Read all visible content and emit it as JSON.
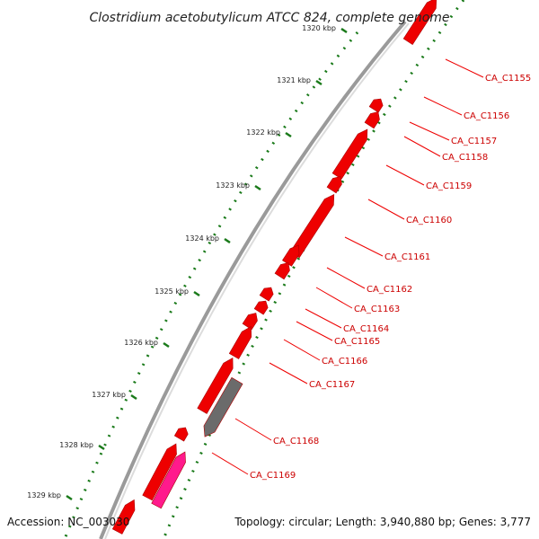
{
  "title": "Clostridium acetobutylicum ATCC 824, complete genome",
  "accession_text": "Accession: NC_003030",
  "stats_text": "Topology: circular; Length: 3,940,880 bp; Genes: 3,777",
  "colors": {
    "gene": "#ee0000",
    "gene_rna": "#6b6b6b",
    "gene_pink": "#ff1a8c",
    "backbone": "#9a9a9a",
    "ruler_dots": "#1a7a1a",
    "label_line": "#ee0000",
    "label_text": "#cc0000"
  },
  "kbp_ticks": [
    "1320 kbp",
    "1321 kbp",
    "1322 kbp",
    "1323 kbp",
    "1324 kbp",
    "1325 kbp",
    "1326 kbp",
    "1327 kbp",
    "1328 kbp",
    "1329 kbp"
  ],
  "gene_labels": [
    "CA_C1155",
    "CA_C1156",
    "CA_C1157",
    "CA_C1158",
    "CA_C1159",
    "CA_C1160",
    "CA_C1161",
    "CA_C1162",
    "CA_C1163",
    "CA_C1164",
    "CA_C1165",
    "CA_C1166",
    "CA_C1167",
    "CA_C1168",
    "CA_C1169"
  ]
}
